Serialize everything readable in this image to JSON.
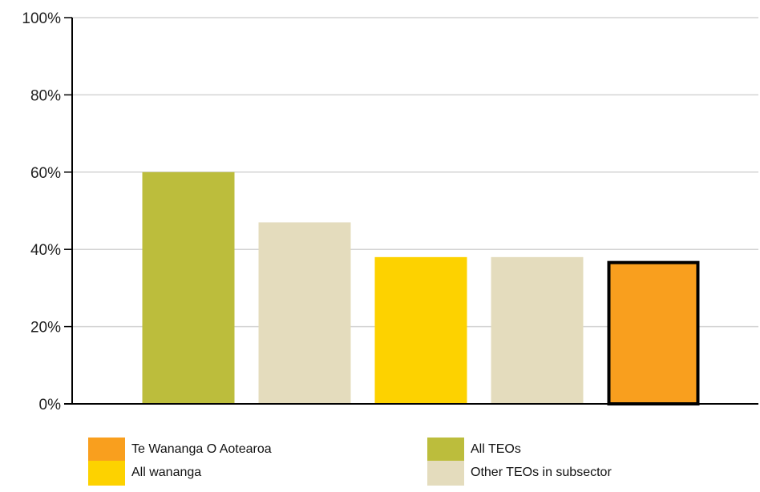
{
  "chart_data": {
    "type": "bar",
    "categories": [
      "All TEOs",
      "Other TEOs in subsector",
      "All wananga",
      "Other TEOs in subsector",
      "Te Wananga O Aotearoa"
    ],
    "values": [
      60,
      47,
      38,
      38,
      37
    ],
    "bar_colors": [
      "#bcbd3c",
      "#e4dcbd",
      "#fdd200",
      "#e4dcbd",
      "#f99f1e"
    ],
    "highlight_index": 4,
    "highlight_outline": "#000000",
    "ylim": [
      0,
      100
    ],
    "yticks": [
      0,
      20,
      40,
      60,
      80,
      100
    ],
    "ytick_labels": [
      "0%",
      "20%",
      "40%",
      "60%",
      "80%",
      "100%"
    ],
    "grid": true,
    "legend": [
      {
        "label": "Te Wananga O Aotearoa",
        "color": "#f99f1e"
      },
      {
        "label": "All TEOs",
        "color": "#bcbd3c"
      },
      {
        "label": "All wananga",
        "color": "#fdd200"
      },
      {
        "label": "Other TEOs in subsector",
        "color": "#e4dcbd"
      }
    ],
    "legend_placement": "bottom"
  }
}
